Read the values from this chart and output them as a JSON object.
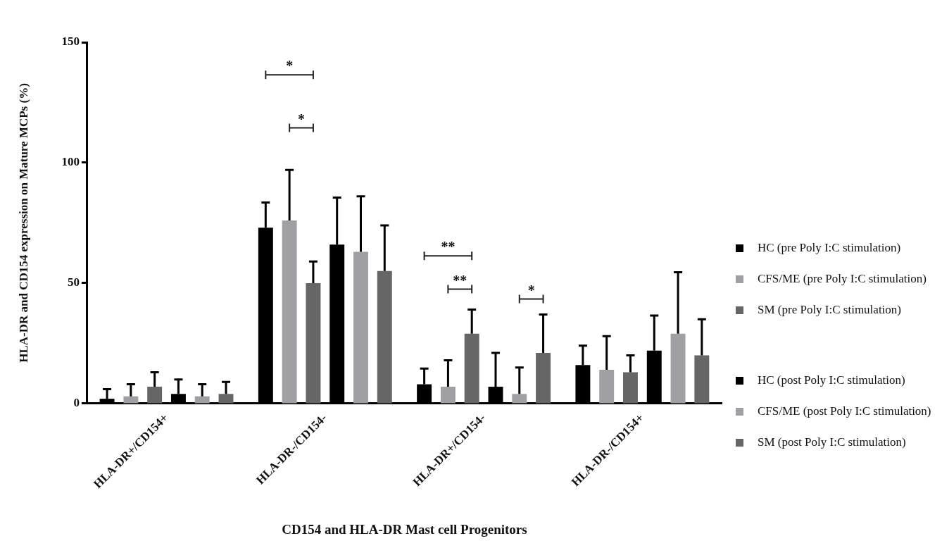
{
  "chart_data": {
    "type": "bar",
    "xlabel": "CD154 and HLA-DR Mast cell Progenitors",
    "ylabel": "HLA-DR and CD154 expression on Mature MCPs (%)",
    "categories": [
      "HLA-DR+/CD154+",
      "HLA-DR-/CD154-",
      "HLA-DR+/CD154-",
      "HLA-DR-/CD154+"
    ],
    "series": [
      {
        "name": "HC (pre Poly I:C stimulation)",
        "color": "#000000",
        "values": [
          2,
          73,
          8,
          16
        ],
        "errors": [
          [
            2,
            6
          ],
          [
            73,
            83.5
          ],
          [
            8,
            14.5
          ],
          [
            16,
            24
          ]
        ]
      },
      {
        "name": "CFS/ME (pre Poly I:C stimulation)",
        "color": "#a0a0a4",
        "values": [
          3,
          76,
          7,
          14
        ],
        "errors": [
          [
            3,
            8
          ],
          [
            76,
            97
          ],
          [
            7,
            18
          ],
          [
            14,
            28
          ]
        ]
      },
      {
        "name": "SM (pre Poly I:C stimulation)",
        "color": "#666666",
        "values": [
          7,
          50,
          29,
          13
        ],
        "errors": [
          [
            7,
            13
          ],
          [
            50,
            59
          ],
          [
            29,
            39
          ],
          [
            13,
            20
          ]
        ]
      },
      {
        "name": "HC (post Poly I:C stimulation)",
        "color": "#000000",
        "values": [
          4,
          66,
          7,
          22
        ],
        "errors": [
          [
            4,
            10
          ],
          [
            66,
            85.5
          ],
          [
            7,
            21
          ],
          [
            22,
            36.5
          ]
        ]
      },
      {
        "name": "CFS/ME (post Poly I:C stimulation)",
        "color": "#a0a0a4",
        "values": [
          3,
          63,
          4,
          29
        ],
        "errors": [
          [
            3,
            8
          ],
          [
            63,
            86
          ],
          [
            4,
            15
          ],
          [
            29,
            54.5
          ]
        ]
      },
      {
        "name": "SM (post Poly I:C stimulation)",
        "color": "#666666",
        "values": [
          4,
          55,
          21,
          20
        ],
        "errors": [
          [
            4,
            9
          ],
          [
            55,
            74
          ],
          [
            21,
            37
          ],
          [
            20,
            35
          ]
        ]
      }
    ],
    "ylim": [
      0,
      150
    ],
    "yticks": [
      0,
      50,
      100,
      150
    ],
    "grid": false,
    "legend": "right",
    "annotations": [
      "*",
      "*",
      "**",
      "**",
      "*"
    ]
  }
}
